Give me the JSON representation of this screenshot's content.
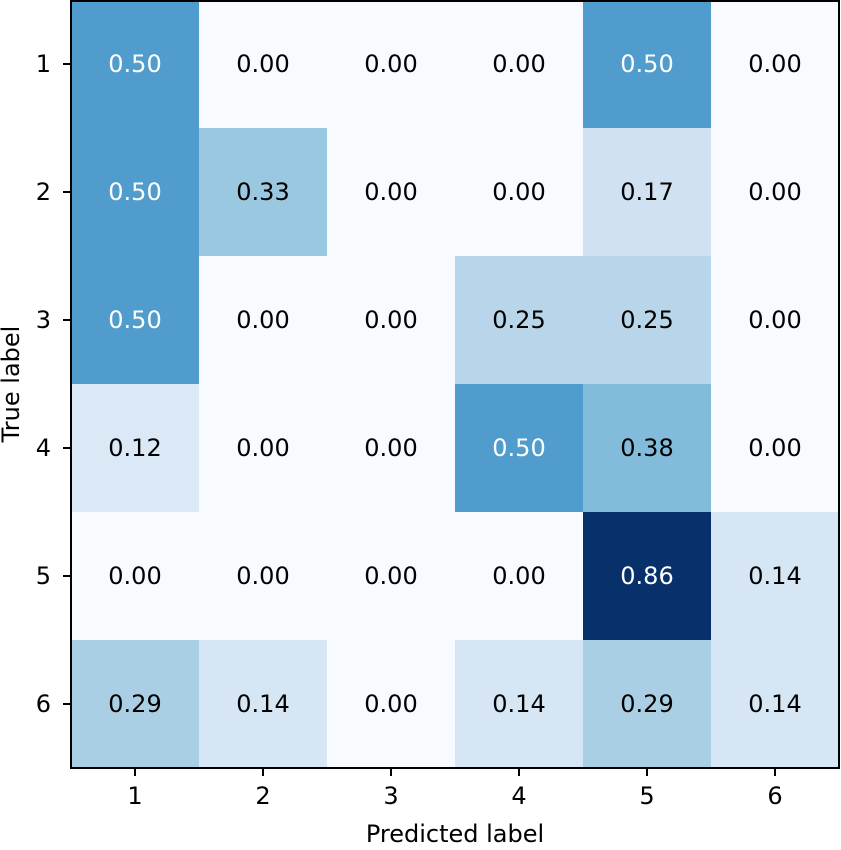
{
  "chart_data": {
    "type": "heatmap",
    "title": "",
    "xlabel": "Predicted label",
    "ylabel": "True label",
    "x_categories": [
      "1",
      "2",
      "3",
      "4",
      "5",
      "6"
    ],
    "y_categories": [
      "1",
      "2",
      "3",
      "4",
      "5",
      "6"
    ],
    "values": [
      [
        0.5,
        0.0,
        0.0,
        0.0,
        0.5,
        0.0
      ],
      [
        0.5,
        0.33,
        0.0,
        0.0,
        0.17,
        0.0
      ],
      [
        0.5,
        0.0,
        0.0,
        0.25,
        0.25,
        0.0
      ],
      [
        0.12,
        0.0,
        0.0,
        0.5,
        0.38,
        0.0
      ],
      [
        0.0,
        0.0,
        0.0,
        0.0,
        0.86,
        0.14
      ],
      [
        0.29,
        0.14,
        0.0,
        0.14,
        0.29,
        0.14
      ]
    ],
    "labels": [
      [
        "0.50",
        "0.00",
        "0.00",
        "0.00",
        "0.50",
        "0.00"
      ],
      [
        "0.50",
        "0.33",
        "0.00",
        "0.00",
        "0.17",
        "0.00"
      ],
      [
        "0.50",
        "0.00",
        "0.00",
        "0.25",
        "0.25",
        "0.00"
      ],
      [
        "0.12",
        "0.00",
        "0.00",
        "0.50",
        "0.38",
        "0.00"
      ],
      [
        "0.00",
        "0.00",
        "0.00",
        "0.00",
        "0.86",
        "0.14"
      ],
      [
        "0.29",
        "0.14",
        "0.00",
        "0.14",
        "0.29",
        "0.14"
      ]
    ],
    "colormap": "Blues",
    "color_range": [
      0.0,
      0.86
    ],
    "grid": false,
    "colors": {
      "low": "#f7fbff",
      "high": "#08306b",
      "text_dark": "#000000",
      "text_light": "#ffffff",
      "frame": "#000000"
    }
  }
}
